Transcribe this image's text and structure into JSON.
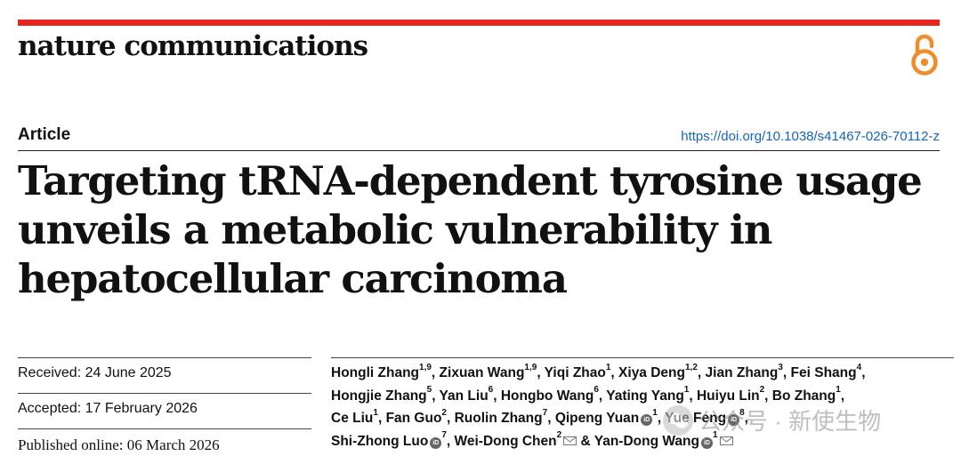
{
  "header": {
    "journal_name": "nature communications",
    "accent_color": "#e8261f",
    "open_access_icon": "open-access-lock-icon"
  },
  "article": {
    "type": "Article",
    "doi": "https://doi.org/10.1038/s41467-026-70112-z",
    "title_lines": [
      "Targeting tRNA-dependent tyrosine usage",
      "unveils a metabolic vulnerability in",
      "hepatocellular carcinoma"
    ]
  },
  "dates": {
    "received": "Received: 24 June 2025",
    "accepted": "Accepted: 17 February 2026",
    "published": "Published online: 06 March 2026"
  },
  "authors": [
    {
      "name": "Hongli Zhang",
      "aff": "1,9"
    },
    {
      "name": "Zixuan Wang",
      "aff": "1,9"
    },
    {
      "name": "Yiqi Zhao",
      "aff": "1"
    },
    {
      "name": "Xiya Deng",
      "aff": "1,2"
    },
    {
      "name": "Jian Zhang",
      "aff": "3"
    },
    {
      "name": "Fei Shang",
      "aff": "4"
    },
    {
      "name": "Hongjie Zhang",
      "aff": "5"
    },
    {
      "name": "Yan Liu",
      "aff": "6"
    },
    {
      "name": "Hongbo Wang",
      "aff": "6"
    },
    {
      "name": "Yating Yang",
      "aff": "1"
    },
    {
      "name": "Huiyu Lin",
      "aff": "2"
    },
    {
      "name": "Bo Zhang",
      "aff": "1"
    },
    {
      "name": "Ce Liu",
      "aff": "1"
    },
    {
      "name": "Fan Guo",
      "aff": "2"
    },
    {
      "name": "Ruolin Zhang",
      "aff": "7"
    },
    {
      "name": "Qipeng Yuan",
      "aff": "1",
      "orcid": true
    },
    {
      "name": "Yue Feng",
      "aff": "8",
      "orcid": true
    },
    {
      "name": "Shi-Zhong Luo",
      "aff": "7",
      "orcid": true
    },
    {
      "name": "Wei-Dong Chen",
      "aff": "2",
      "email": true
    },
    {
      "name": "Yan-Dong Wang",
      "aff": "1",
      "orcid": true,
      "email": true
    }
  ],
  "author_lines": [
    [
      0,
      5
    ],
    [
      6,
      11
    ],
    [
      12,
      16
    ],
    [
      17,
      19
    ]
  ],
  "orcid_label": "iD",
  "watermark": "公众号 · 新使生物"
}
